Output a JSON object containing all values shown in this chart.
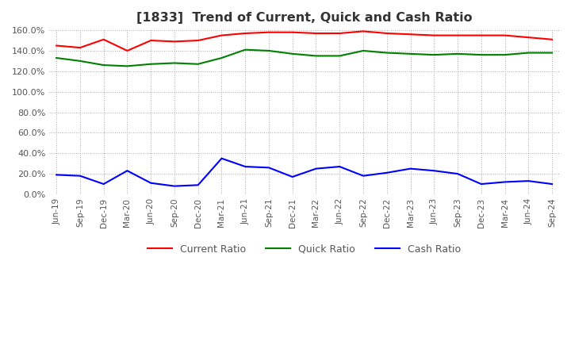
{
  "title": "[1833]  Trend of Current, Quick and Cash Ratio",
  "x_labels": [
    "Jun-19",
    "Sep-19",
    "Dec-19",
    "Mar-20",
    "Jun-20",
    "Sep-20",
    "Dec-20",
    "Mar-21",
    "Jun-21",
    "Sep-21",
    "Dec-21",
    "Mar-22",
    "Jun-22",
    "Sep-22",
    "Dec-22",
    "Mar-23",
    "Jun-23",
    "Sep-23",
    "Dec-23",
    "Mar-24",
    "Jun-24",
    "Sep-24"
  ],
  "current_ratio": [
    145,
    143,
    151,
    140,
    150,
    149,
    150,
    155,
    157,
    158,
    158,
    157,
    157,
    159,
    157,
    156,
    155,
    155,
    155,
    155,
    153,
    151
  ],
  "quick_ratio": [
    133,
    130,
    126,
    125,
    127,
    128,
    127,
    133,
    141,
    140,
    137,
    135,
    135,
    140,
    138,
    137,
    136,
    137,
    136,
    136,
    138,
    138
  ],
  "cash_ratio": [
    19,
    18,
    10,
    23,
    11,
    8,
    9,
    35,
    27,
    26,
    17,
    25,
    27,
    18,
    21,
    25,
    23,
    20,
    10,
    12,
    13,
    10
  ],
  "current_color": "#ff0000",
  "quick_color": "#008000",
  "cash_color": "#0000ff",
  "ylim": [
    0,
    160
  ],
  "yticks": [
    0,
    20,
    40,
    60,
    80,
    100,
    120,
    140,
    160
  ],
  "background_color": "#ffffff",
  "grid_color": "#aaaaaa"
}
